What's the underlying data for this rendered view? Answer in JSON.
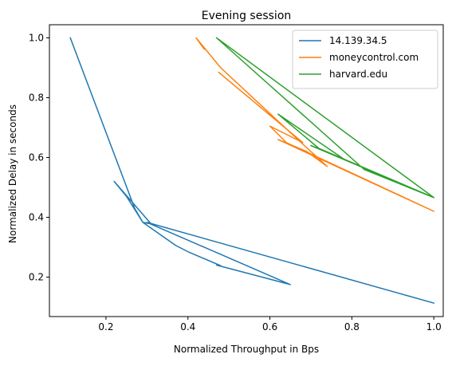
{
  "chart_data": {
    "type": "line",
    "title": "Evening session",
    "xlabel": "Normalized Throughput in Bps",
    "ylabel": "Normalized Delay in seconds",
    "xlim": [
      0.062,
      1.023
    ],
    "ylim": [
      0.068,
      1.044
    ],
    "x_ticks": [
      0.2,
      0.4,
      0.6,
      0.8,
      1.0
    ],
    "x_tick_labels": [
      "0.2",
      "0.4",
      "0.6",
      "0.8",
      "1.0"
    ],
    "y_ticks": [
      0.2,
      0.4,
      0.6,
      0.8,
      1.0
    ],
    "y_tick_labels": [
      "0.2",
      "0.4",
      "0.6",
      "0.8",
      "1.0"
    ],
    "grid": false,
    "legend_position": "top-right",
    "series": [
      {
        "name": "14.139.34.5",
        "color": "#1f77b4",
        "points": [
          [
            0.113,
            1.0
          ],
          [
            0.27,
            0.43
          ],
          [
            0.29,
            0.383
          ],
          [
            0.31,
            0.378
          ],
          [
            0.22,
            0.52
          ],
          [
            0.25,
            0.47
          ],
          [
            0.29,
            0.383
          ],
          [
            0.37,
            0.306
          ],
          [
            0.4,
            0.285
          ],
          [
            0.48,
            0.238
          ],
          [
            0.47,
            0.24
          ],
          [
            0.65,
            0.175
          ],
          [
            0.3,
            0.383
          ],
          [
            1.0,
            0.113
          ]
        ]
      },
      {
        "name": "moneycontrol.com",
        "color": "#ff7f0e",
        "points": [
          [
            0.44,
            0.962
          ],
          [
            0.42,
            1.0
          ],
          [
            0.48,
            0.9
          ],
          [
            0.68,
            0.645
          ],
          [
            0.74,
            0.57
          ],
          [
            0.69,
            0.62
          ],
          [
            0.62,
            0.66
          ],
          [
            1.0,
            0.42
          ],
          [
            0.64,
            0.65
          ],
          [
            0.6,
            0.705
          ],
          [
            0.68,
            0.65
          ],
          [
            0.475,
            0.885
          ]
        ]
      },
      {
        "name": "harvard.edu",
        "color": "#2ca02c",
        "points": [
          [
            0.47,
            1.0
          ],
          [
            1.0,
            0.466
          ],
          [
            0.7,
            0.64
          ],
          [
            0.78,
            0.595
          ],
          [
            0.62,
            0.745
          ],
          [
            0.72,
            0.63
          ],
          [
            1.0,
            0.466
          ],
          [
            0.83,
            0.56
          ],
          [
            0.47,
            1.0
          ]
        ]
      }
    ]
  }
}
